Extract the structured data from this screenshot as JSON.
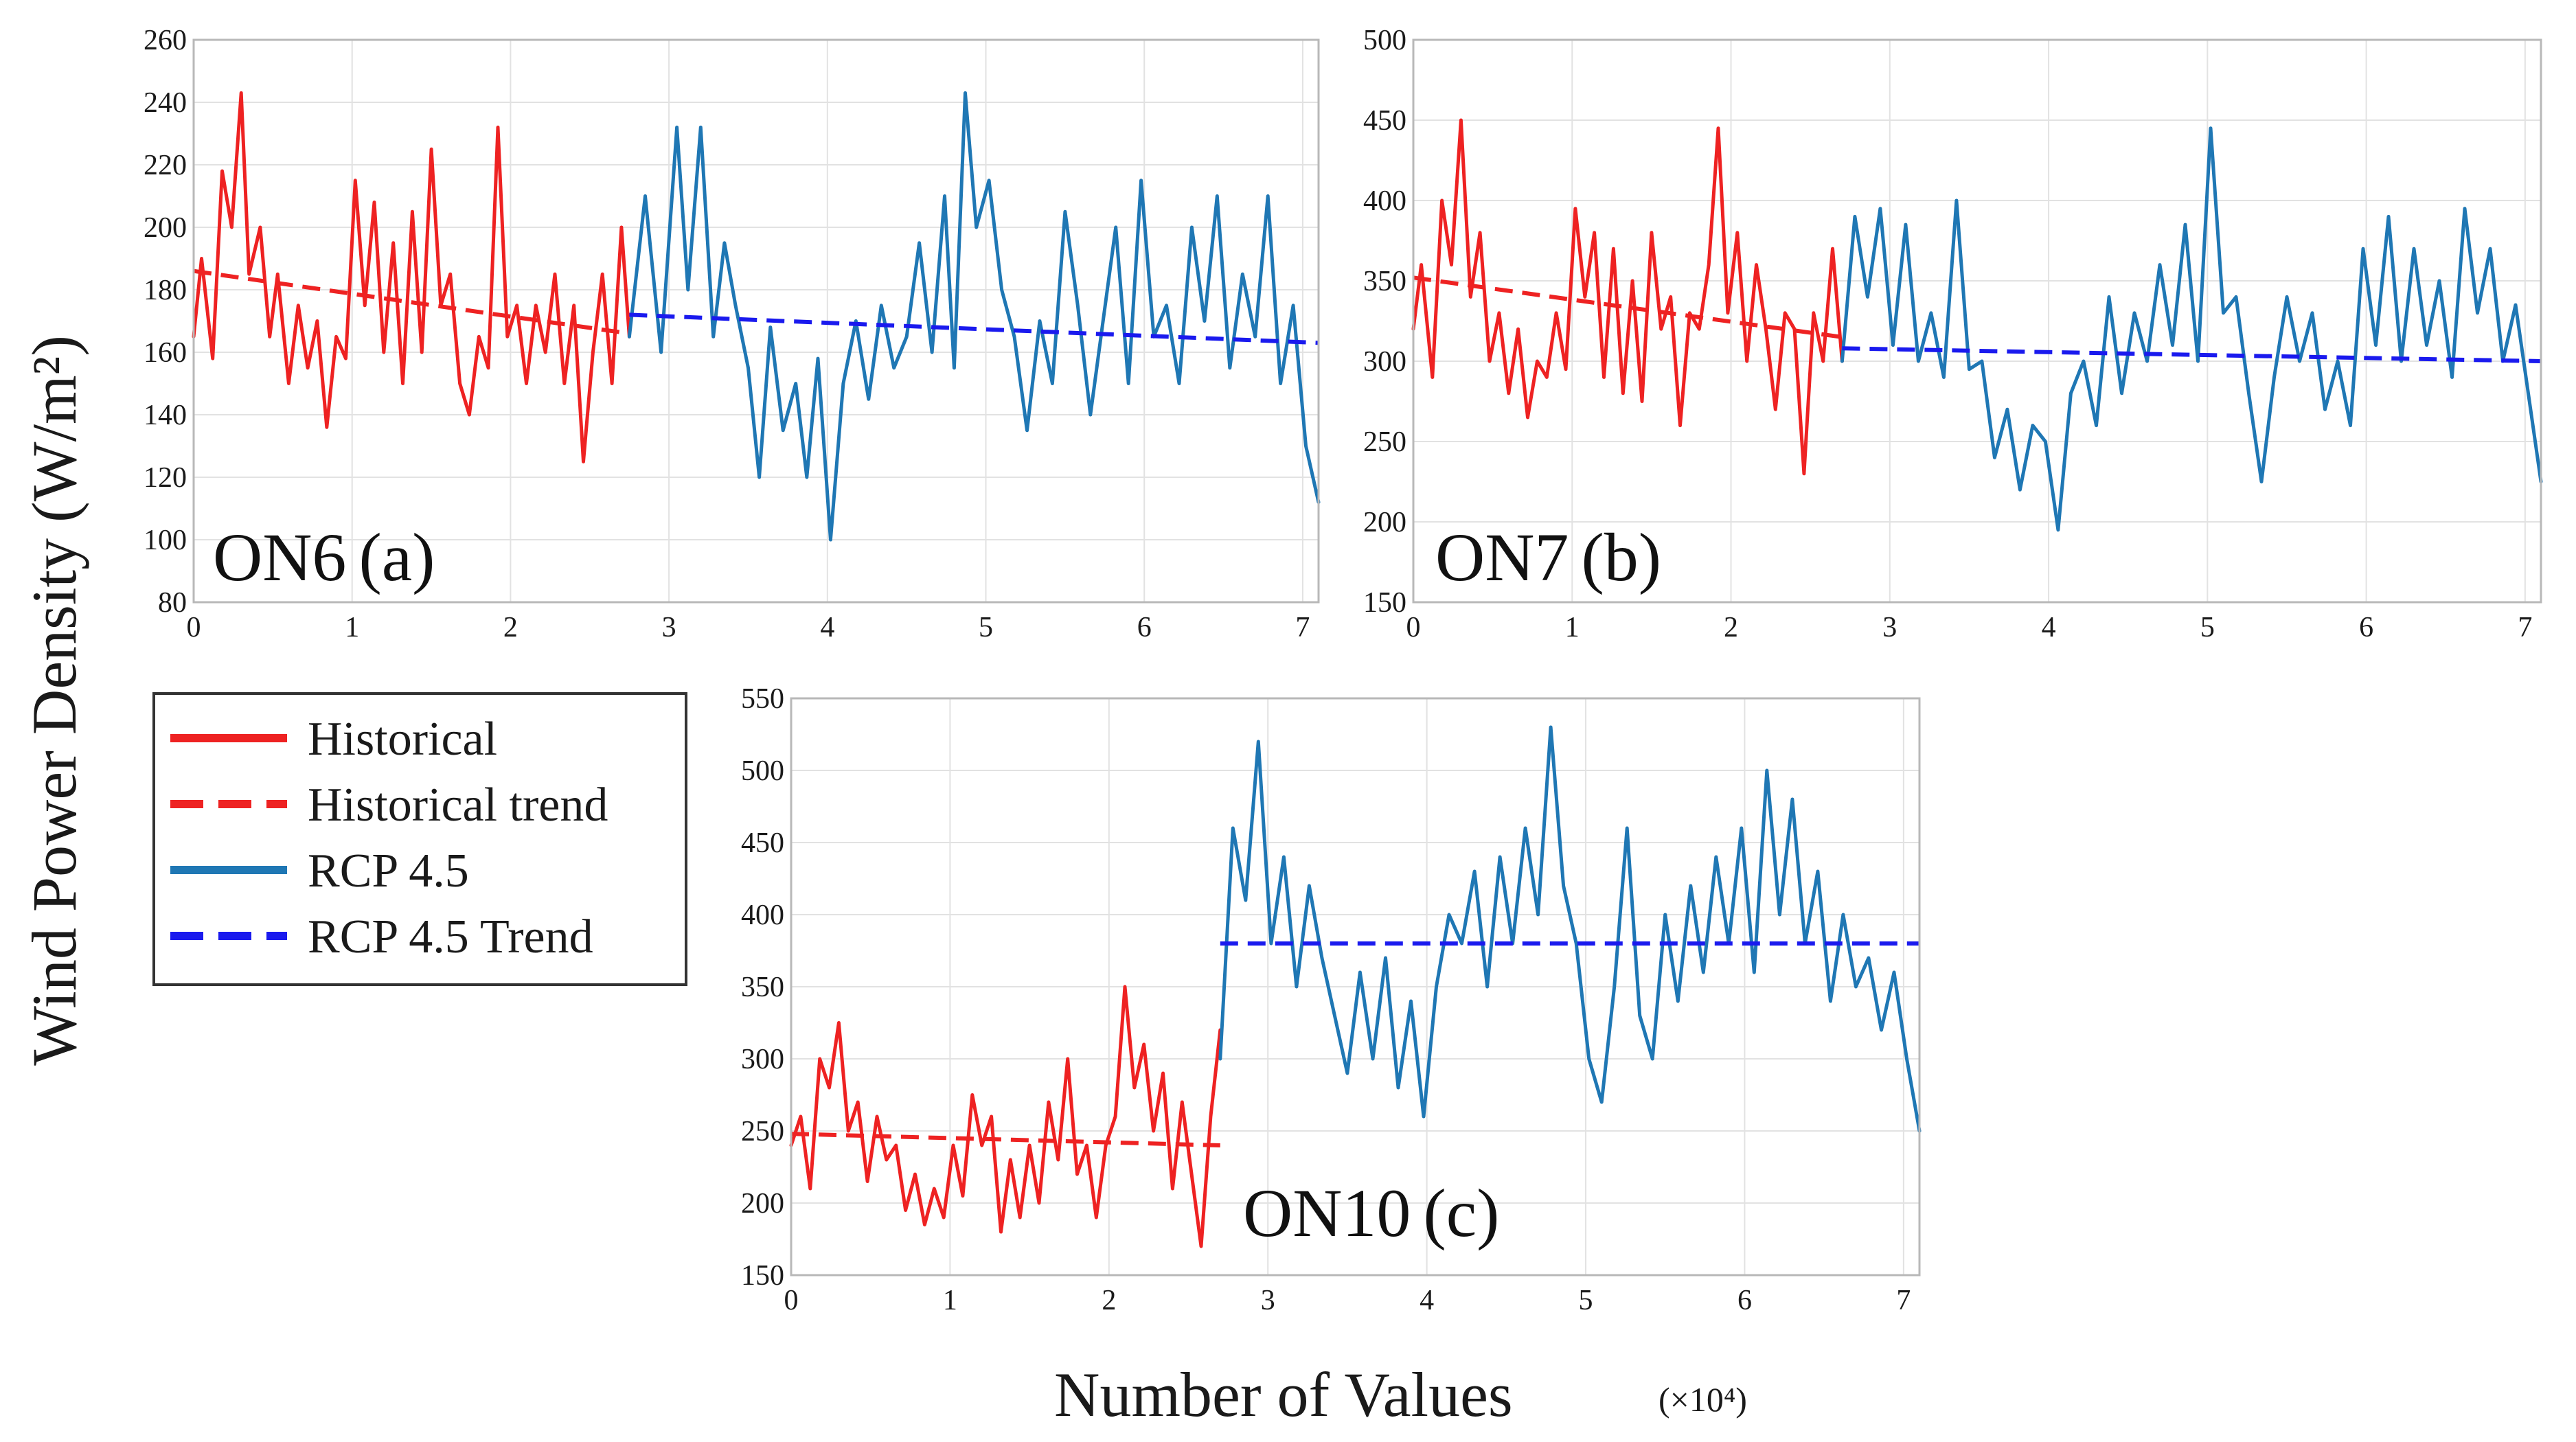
{
  "figure": {
    "ylabel": "Wind Power Density (W/m²)",
    "xlabel": "Number of Values",
    "xlabel_unit": "(×10⁴)"
  },
  "legend": {
    "items": [
      {
        "label": "Historical",
        "color": "#ee2222",
        "dashed": false
      },
      {
        "label": "Historical trend",
        "color": "#ee2222",
        "dashed": true
      },
      {
        "label": "RCP 4.5",
        "color": "#1f77b4",
        "dashed": false
      },
      {
        "label": "RCP 4.5 Trend",
        "color": "#1a1aee",
        "dashed": true
      }
    ]
  },
  "colors": {
    "historical": "#ee2222",
    "rcp": "#1f77b4",
    "rcp_trend": "#1a1aee"
  },
  "chart_data": [
    {
      "type": "line",
      "id": "a",
      "title": "ON6 (a)",
      "title_station": "ON6",
      "title_letter": "(a)",
      "xlabel": "Number of Values (×10⁴)",
      "ylabel": "Wind Power Density (W/m²)",
      "xlim": [
        0,
        7.1
      ],
      "ylim": [
        80,
        260
      ],
      "xticks": [
        "0",
        "1",
        "2",
        "3",
        "4",
        "5",
        "6",
        "7"
      ],
      "yticks": [
        "80",
        "100",
        "120",
        "140",
        "160",
        "180",
        "200",
        "220",
        "240",
        "260"
      ],
      "grid": true,
      "series": [
        {
          "name": "Historical",
          "x": [
            0,
            0.05,
            0.12,
            0.18,
            0.24,
            0.3,
            0.35,
            0.42,
            0.48,
            0.53,
            0.6,
            0.66,
            0.72,
            0.78,
            0.84,
            0.9,
            0.96,
            1.02,
            1.08,
            1.14,
            1.2,
            1.26,
            1.32,
            1.38,
            1.44,
            1.5,
            1.56,
            1.62,
            1.68,
            1.74,
            1.8,
            1.86,
            1.92,
            1.98,
            2.04,
            2.1,
            2.16,
            2.22,
            2.28,
            2.34,
            2.4,
            2.46,
            2.52,
            2.58,
            2.64,
            2.7,
            2.75
          ],
          "y": [
            165,
            190,
            158,
            218,
            200,
            243,
            185,
            200,
            165,
            185,
            150,
            175,
            155,
            170,
            136,
            165,
            158,
            215,
            175,
            208,
            160,
            195,
            150,
            205,
            160,
            225,
            175,
            185,
            150,
            140,
            165,
            155,
            232,
            165,
            175,
            150,
            175,
            160,
            185,
            150,
            175,
            125,
            160,
            185,
            150,
            200,
            165
          ]
        },
        {
          "name": "Historical trend",
          "dashed": true,
          "x": [
            0,
            2.75
          ],
          "y": [
            186,
            166
          ]
        },
        {
          "name": "RCP 4.5",
          "x": [
            2.75,
            2.85,
            2.95,
            3.05,
            3.12,
            3.2,
            3.28,
            3.35,
            3.42,
            3.5,
            3.57,
            3.64,
            3.72,
            3.8,
            3.87,
            3.94,
            4.02,
            4.1,
            4.18,
            4.26,
            4.34,
            4.42,
            4.5,
            4.58,
            4.66,
            4.74,
            4.8,
            4.87,
            4.94,
            5.02,
            5.1,
            5.18,
            5.26,
            5.34,
            5.42,
            5.5,
            5.58,
            5.66,
            5.74,
            5.82,
            5.9,
            5.98,
            6.06,
            6.14,
            6.22,
            6.3,
            6.38,
            6.46,
            6.54,
            6.62,
            6.7,
            6.78,
            6.86,
            6.94,
            7.02,
            7.1
          ],
          "y": [
            165,
            210,
            160,
            232,
            180,
            232,
            165,
            195,
            175,
            155,
            120,
            168,
            135,
            150,
            120,
            158,
            100,
            150,
            170,
            145,
            175,
            155,
            165,
            195,
            160,
            210,
            155,
            243,
            200,
            215,
            180,
            165,
            135,
            170,
            150,
            205,
            175,
            140,
            170,
            200,
            150,
            215,
            165,
            175,
            150,
            200,
            170,
            210,
            155,
            185,
            165,
            210,
            150,
            175,
            130,
            112
          ]
        },
        {
          "name": "RCP 4.5 Trend",
          "dashed": true,
          "x": [
            2.75,
            7.1
          ],
          "y": [
            172,
            163
          ]
        }
      ]
    },
    {
      "type": "line",
      "id": "b",
      "title": "ON7 (b)",
      "title_station": "ON7",
      "title_letter": "(b)",
      "xlabel": "Number of Values (×10⁴)",
      "ylabel": "Wind Power Density (W/m²)",
      "xlim": [
        0,
        7.1
      ],
      "ylim": [
        150,
        500
      ],
      "xticks": [
        "0",
        "1",
        "2",
        "3",
        "4",
        "5",
        "6",
        "7"
      ],
      "yticks": [
        "150",
        "200",
        "250",
        "300",
        "350",
        "400",
        "450",
        "500"
      ],
      "grid": true,
      "series": [
        {
          "name": "Historical",
          "x": [
            0,
            0.05,
            0.12,
            0.18,
            0.24,
            0.3,
            0.36,
            0.42,
            0.48,
            0.54,
            0.6,
            0.66,
            0.72,
            0.78,
            0.84,
            0.9,
            0.96,
            1.02,
            1.08,
            1.14,
            1.2,
            1.26,
            1.32,
            1.38,
            1.44,
            1.5,
            1.56,
            1.62,
            1.68,
            1.74,
            1.8,
            1.86,
            1.92,
            1.98,
            2.04,
            2.1,
            2.16,
            2.22,
            2.28,
            2.34,
            2.4,
            2.46,
            2.52,
            2.58,
            2.64,
            2.7
          ],
          "y": [
            320,
            360,
            290,
            400,
            360,
            450,
            340,
            380,
            300,
            330,
            280,
            320,
            265,
            300,
            290,
            330,
            295,
            395,
            340,
            380,
            290,
            370,
            280,
            350,
            275,
            380,
            320,
            340,
            260,
            330,
            320,
            360,
            445,
            330,
            380,
            300,
            360,
            320,
            270,
            330,
            320,
            230,
            330,
            300,
            370,
            300
          ]
        },
        {
          "name": "Historical trend",
          "dashed": true,
          "x": [
            0,
            2.7
          ],
          "y": [
            352,
            315
          ]
        },
        {
          "name": "RCP 4.5",
          "x": [
            2.7,
            2.78,
            2.86,
            2.94,
            3.02,
            3.1,
            3.18,
            3.26,
            3.34,
            3.42,
            3.5,
            3.58,
            3.66,
            3.74,
            3.82,
            3.9,
            3.98,
            4.06,
            4.14,
            4.22,
            4.3,
            4.38,
            4.46,
            4.54,
            4.62,
            4.7,
            4.78,
            4.86,
            4.94,
            5.02,
            5.1,
            5.18,
            5.26,
            5.34,
            5.42,
            5.5,
            5.58,
            5.66,
            5.74,
            5.82,
            5.9,
            5.98,
            6.06,
            6.14,
            6.22,
            6.3,
            6.38,
            6.46,
            6.54,
            6.62,
            6.7,
            6.78,
            6.86,
            6.94,
            7.02,
            7.1
          ],
          "y": [
            300,
            390,
            340,
            395,
            310,
            385,
            300,
            330,
            290,
            400,
            295,
            300,
            240,
            270,
            220,
            260,
            250,
            195,
            280,
            300,
            260,
            340,
            280,
            330,
            300,
            360,
            310,
            385,
            300,
            445,
            330,
            340,
            280,
            225,
            290,
            340,
            300,
            330,
            270,
            300,
            260,
            370,
            310,
            390,
            300,
            370,
            310,
            350,
            290,
            395,
            330,
            370,
            300,
            335,
            280,
            225
          ]
        },
        {
          "name": "RCP 4.5 Trend",
          "dashed": true,
          "x": [
            2.7,
            7.1
          ],
          "y": [
            308,
            300
          ]
        }
      ]
    },
    {
      "type": "line",
      "id": "c",
      "title": "ON10 (c)",
      "title_station": "ON10",
      "title_letter": "(c)",
      "xlabel": "Number of Values (×10⁴)",
      "ylabel": "Wind Power Density (W/m²)",
      "xlim": [
        0,
        7.1
      ],
      "ylim": [
        150,
        550
      ],
      "xticks": [
        "0",
        "1",
        "2",
        "3",
        "4",
        "5",
        "6",
        "7"
      ],
      "yticks": [
        "150",
        "200",
        "250",
        "300",
        "350",
        "400",
        "450",
        "500",
        "550"
      ],
      "grid": true,
      "series": [
        {
          "name": "Historical",
          "x": [
            0,
            0.06,
            0.12,
            0.18,
            0.24,
            0.3,
            0.36,
            0.42,
            0.48,
            0.54,
            0.6,
            0.66,
            0.72,
            0.78,
            0.84,
            0.9,
            0.96,
            1.02,
            1.08,
            1.14,
            1.2,
            1.26,
            1.32,
            1.38,
            1.44,
            1.5,
            1.56,
            1.62,
            1.68,
            1.74,
            1.8,
            1.86,
            1.92,
            1.98,
            2.04,
            2.1,
            2.16,
            2.22,
            2.28,
            2.34,
            2.4,
            2.46,
            2.52,
            2.58,
            2.64,
            2.7
          ],
          "y": [
            240,
            260,
            210,
            300,
            280,
            325,
            250,
            270,
            215,
            260,
            230,
            240,
            195,
            220,
            185,
            210,
            190,
            240,
            205,
            275,
            240,
            260,
            180,
            230,
            190,
            240,
            200,
            270,
            230,
            300,
            220,
            240,
            190,
            240,
            260,
            350,
            280,
            310,
            250,
            290,
            210,
            270,
            220,
            170,
            260,
            320
          ]
        },
        {
          "name": "Historical trend",
          "dashed": true,
          "x": [
            0,
            2.7
          ],
          "y": [
            248,
            240
          ]
        },
        {
          "name": "RCP 4.5",
          "x": [
            2.7,
            2.78,
            2.86,
            2.94,
            3.02,
            3.1,
            3.18,
            3.26,
            3.34,
            3.42,
            3.5,
            3.58,
            3.66,
            3.74,
            3.82,
            3.9,
            3.98,
            4.06,
            4.14,
            4.22,
            4.3,
            4.38,
            4.46,
            4.54,
            4.62,
            4.7,
            4.78,
            4.86,
            4.94,
            5.02,
            5.1,
            5.18,
            5.26,
            5.34,
            5.42,
            5.5,
            5.58,
            5.66,
            5.74,
            5.82,
            5.9,
            5.98,
            6.06,
            6.14,
            6.22,
            6.3,
            6.38,
            6.46,
            6.54,
            6.62,
            6.7,
            6.78,
            6.86,
            6.94,
            7.02,
            7.1
          ],
          "y": [
            300,
            460,
            410,
            520,
            380,
            440,
            350,
            420,
            370,
            330,
            290,
            360,
            300,
            370,
            280,
            340,
            260,
            350,
            400,
            380,
            430,
            350,
            440,
            380,
            460,
            400,
            530,
            420,
            380,
            300,
            270,
            350,
            460,
            330,
            300,
            400,
            340,
            420,
            360,
            440,
            380,
            460,
            360,
            500,
            400,
            480,
            380,
            430,
            340,
            400,
            350,
            370,
            320,
            360,
            300,
            250
          ]
        },
        {
          "name": "RCP 4.5 Trend",
          "dashed": true,
          "x": [
            2.7,
            7.1
          ],
          "y": [
            380,
            380
          ]
        }
      ]
    }
  ]
}
